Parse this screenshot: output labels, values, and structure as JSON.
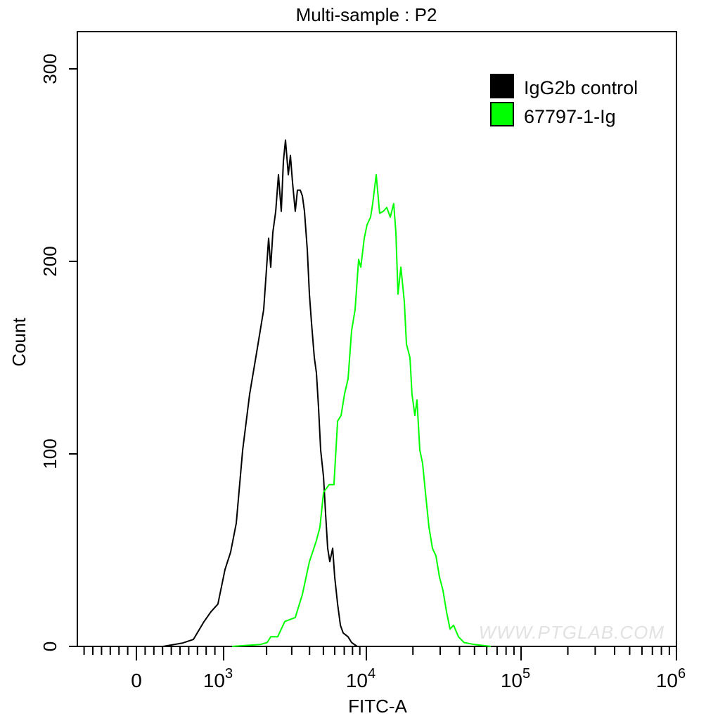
{
  "chart_data": {
    "type": "line",
    "title": "Multi-sample : P2",
    "xlabel": "FITC-A",
    "ylabel": "Count",
    "x_scale": "biexponential",
    "xlim": [
      -680,
      1000000
    ],
    "ylim": [
      0,
      320
    ],
    "grid": false,
    "legend_position": "top-right",
    "x_ticks": [
      {
        "value": 0,
        "base": "0",
        "exp": ""
      },
      {
        "value": 1000,
        "base": "10",
        "exp": "3"
      },
      {
        "value": 10000,
        "base": "10",
        "exp": "4"
      },
      {
        "value": 100000,
        "base": "10",
        "exp": "5"
      },
      {
        "value": 1000000,
        "base": "10",
        "exp": "6"
      }
    ],
    "y_ticks": [
      {
        "value": 0,
        "label": "0"
      },
      {
        "value": 100,
        "label": "100"
      },
      {
        "value": 200,
        "label": "200"
      },
      {
        "value": 300,
        "label": "300"
      }
    ],
    "series": [
      {
        "name": "IgG2b control",
        "color": "#000000",
        "x": [
          306,
          532,
          653,
          774,
          855,
          935,
          1023,
          1120,
          1227,
          1360,
          1521,
          1706,
          1910,
          2066,
          2138,
          2213,
          2317,
          2423,
          2535,
          2624,
          2713,
          2838,
          2938,
          3040,
          3178,
          3289,
          3443,
          3564,
          3687,
          3855,
          3990,
          4130,
          4318,
          4468,
          4624,
          4786,
          5012,
          5181,
          5361,
          5546,
          5806,
          6004,
          6285,
          6578,
          6877,
          7447,
          7883,
          8630
        ],
        "y": [
          0,
          1.8,
          3.6,
          12.8,
          18,
          22,
          40,
          49,
          64,
          102,
          131,
          153,
          175,
          212,
          197,
          215,
          226,
          245,
          226,
          252,
          263,
          245,
          255,
          241,
          226,
          237,
          237,
          234,
          226,
          206,
          183,
          168,
          150,
          142,
          124,
          102,
          88,
          69,
          51,
          44,
          51,
          36,
          22,
          11,
          7,
          5,
          2,
          0
        ]
      },
      {
        "name": "67797-1-Ig",
        "color": "#00ff00",
        "x": [
          1146,
          1803,
          2018,
          2138,
          2393,
          2685,
          3178,
          3564,
          3990,
          4468,
          4732,
          5012,
          5483,
          5931,
          6285,
          6653,
          7031,
          7447,
          7883,
          8337,
          8831,
          9141,
          9661,
          10104,
          10650,
          10990,
          11580,
          12190,
          12850,
          13540,
          14270,
          15030,
          15520,
          16020,
          16710,
          17590,
          18150,
          19130,
          19730,
          20590,
          21250,
          22150,
          23090,
          24080,
          25390,
          26750,
          28180,
          29700,
          31280,
          32970,
          34730,
          36600,
          39380,
          42830,
          50000,
          63800
        ],
        "y": [
          0,
          1,
          2,
          5,
          5,
          13,
          15,
          27,
          44,
          55,
          62,
          80,
          84,
          84,
          117,
          120,
          131,
          139,
          164,
          175,
          201,
          197,
          212,
          219,
          223,
          230,
          245,
          225,
          226,
          228,
          223,
          230,
          215,
          183,
          197,
          179,
          157,
          150,
          131,
          120,
          128,
          102,
          95,
          80,
          62,
          51,
          47,
          36,
          29,
          18,
          9,
          11,
          5,
          2,
          1,
          0
        ]
      }
    ],
    "watermark": "WWW.PTGLAB.COM"
  }
}
